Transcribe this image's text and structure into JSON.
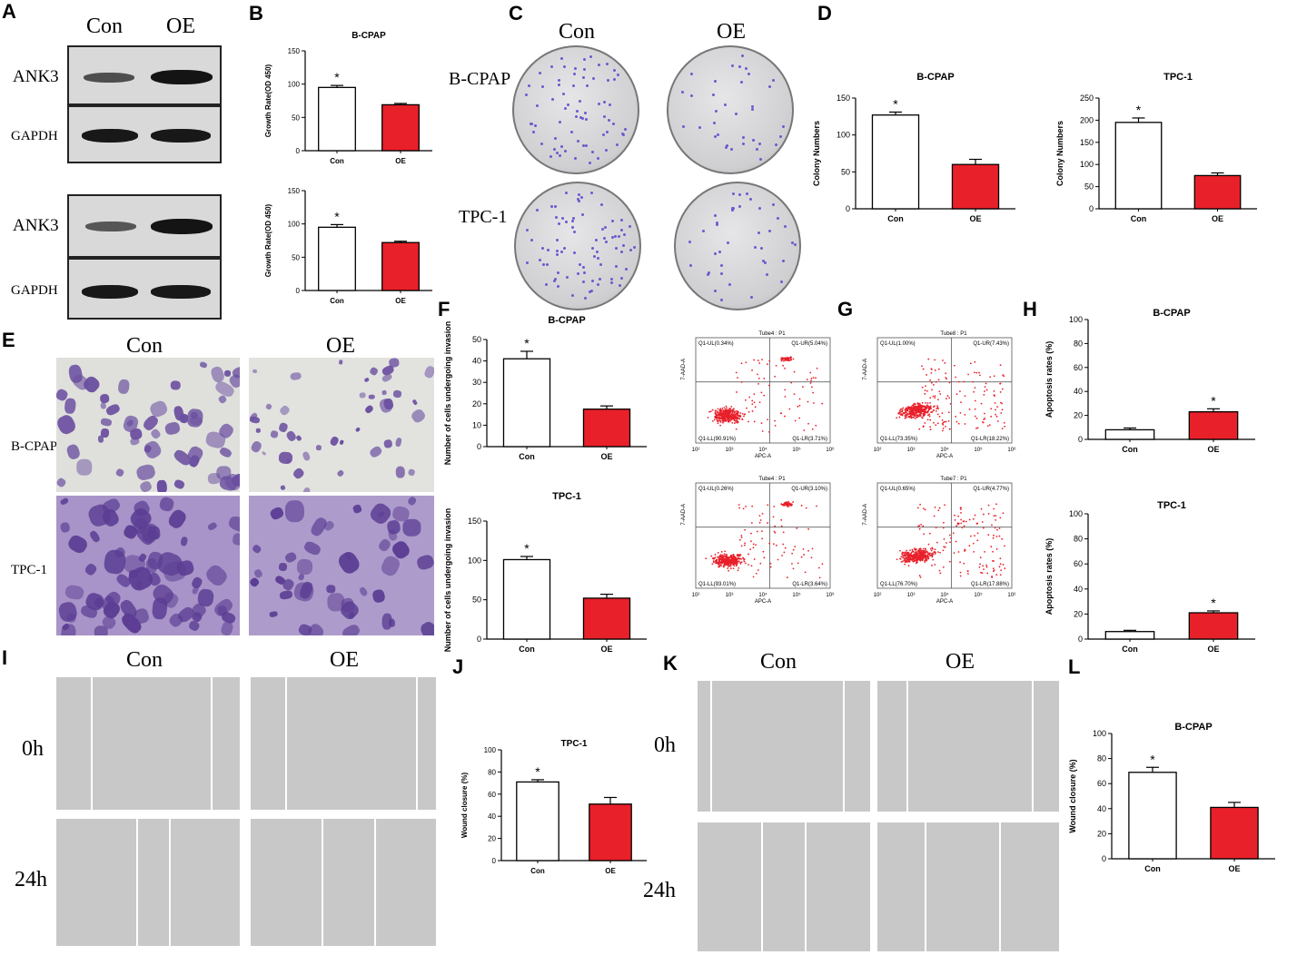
{
  "panels": {
    "A": "A",
    "B": "B",
    "C": "C",
    "D": "D",
    "E": "E",
    "F": "F",
    "G": "G",
    "H": "H",
    "I": "I",
    "J": "J",
    "K": "K",
    "L": "L"
  },
  "labels": {
    "con": "Con",
    "oe": "OE",
    "ank3": "ANK3",
    "gapdh": "GAPDH",
    "bcpap": "B-CPAP",
    "tpc1": "TPC-1",
    "h0": "0h",
    "h24": "24h",
    "star": "*"
  },
  "flow": [
    {
      "tube": "Tube4 : P1",
      "ul": "Q1-UL(0.34%)",
      "ur": "Q1-UR(5.04%)",
      "ll": "Q1-LL(90.91%)",
      "lr": "Q1-LR(3.71%)"
    },
    {
      "tube": "Tube8 : P1",
      "ul": "Q1-UL(1.00%)",
      "ur": "Q1-UR(7.43%)",
      "ll": "Q1-LL(73.35%)",
      "lr": "Q1-LR(18.22%)"
    },
    {
      "tube": "Tube4 : P1",
      "ul": "Q1-UL(0.26%)",
      "ur": "Q1-UR(3.10%)",
      "ll": "Q1-LL(93.01%)",
      "lr": "Q1-LR(3.64%)"
    },
    {
      "tube": "Tube7 : P1",
      "ul": "Q1-UL(0.65%)",
      "ur": "Q1-UR(4.77%)",
      "ll": "Q1-LL(76.70%)",
      "lr": "Q1-LR(17.88%)"
    }
  ],
  "flow_axes": {
    "x": "APC-A",
    "y": "7-AAD-A",
    "xticks": [
      "10²",
      "10³",
      "10⁴",
      "10⁵",
      "10⁶"
    ]
  },
  "colors": {
    "oe_bar": "#e8202a",
    "con_bar": "#ffffff",
    "dot": "#e8202a",
    "stain": "#7a5aa8"
  },
  "chart_data": [
    {
      "id": "B1",
      "type": "bar",
      "title": "B-CPAP",
      "ylabel": "Growth Rate(OD 450)",
      "ylim": [
        0,
        150
      ],
      "yticks": [
        0,
        50,
        100,
        150
      ],
      "categories": [
        "Con",
        "OE"
      ],
      "values": [
        95,
        69
      ],
      "errors": [
        3,
        2
      ],
      "star": 0
    },
    {
      "id": "B2",
      "type": "bar",
      "title": "",
      "ylabel": "Growth Rate(OD 450)",
      "ylim": [
        0,
        150
      ],
      "yticks": [
        0,
        50,
        100,
        150
      ],
      "categories": [
        "Con",
        "OE"
      ],
      "values": [
        95,
        72
      ],
      "errors": [
        4,
        2
      ],
      "star": 0
    },
    {
      "id": "D1",
      "type": "bar",
      "title": "B-CPAP",
      "ylabel": "Colony Numbers",
      "ylim": [
        0,
        150
      ],
      "yticks": [
        0,
        50,
        100,
        150
      ],
      "categories": [
        "Con",
        "OE"
      ],
      "values": [
        127,
        60
      ],
      "errors": [
        4,
        7
      ],
      "star": 0
    },
    {
      "id": "D2",
      "type": "bar",
      "title": "TPC-1",
      "ylabel": "Colony Numbers",
      "ylim": [
        0,
        250
      ],
      "yticks": [
        0,
        50,
        100,
        150,
        200,
        250
      ],
      "categories": [
        "Con",
        "OE"
      ],
      "values": [
        195,
        75
      ],
      "errors": [
        10,
        6
      ],
      "star": 0
    },
    {
      "id": "F1",
      "type": "bar",
      "title": "B-CPAP",
      "ylabel": "Number of cells undergoing invasion",
      "ylim": [
        0,
        50
      ],
      "yticks": [
        0,
        10,
        20,
        30,
        40,
        50
      ],
      "categories": [
        "Con",
        "OE"
      ],
      "values": [
        41,
        17.5
      ],
      "errors": [
        3.5,
        1.5
      ],
      "star": 0
    },
    {
      "id": "F2",
      "type": "bar",
      "title": "TPC-1",
      "ylabel": "Number of cells undergoing invasion",
      "ylim": [
        0,
        150
      ],
      "yticks": [
        0,
        50,
        100,
        150
      ],
      "categories": [
        "Con",
        "OE"
      ],
      "values": [
        101,
        52
      ],
      "errors": [
        4,
        5
      ],
      "star": 0
    },
    {
      "id": "H1",
      "type": "bar",
      "title": "B-CPAP",
      "ylabel": "Apoptosis rates (%)",
      "ylim": [
        0,
        100
      ],
      "yticks": [
        0,
        20,
        40,
        60,
        80,
        100
      ],
      "categories": [
        "Con",
        "OE"
      ],
      "values": [
        8,
        23
      ],
      "errors": [
        1.5,
        2.5
      ],
      "star": 1
    },
    {
      "id": "H2",
      "type": "bar",
      "title": "TPC-1",
      "ylabel": "Apoptosis rates (%)",
      "ylim": [
        0,
        100
      ],
      "yticks": [
        0,
        20,
        40,
        60,
        80,
        100
      ],
      "categories": [
        "Con",
        "OE"
      ],
      "values": [
        6,
        21
      ],
      "errors": [
        1,
        1.5
      ],
      "star": 1
    },
    {
      "id": "J",
      "type": "bar",
      "title": "TPC-1",
      "ylabel": "Wound closure (%)",
      "ylim": [
        0,
        100
      ],
      "yticks": [
        0,
        20,
        40,
        60,
        80,
        100
      ],
      "categories": [
        "Con",
        "OE"
      ],
      "values": [
        71,
        51
      ],
      "errors": [
        2,
        6
      ],
      "star": 0
    },
    {
      "id": "L",
      "type": "bar",
      "title": "B-CPAP",
      "ylabel": "Wound closure (%)",
      "ylim": [
        0,
        100
      ],
      "yticks": [
        0,
        20,
        40,
        60,
        80,
        100
      ],
      "categories": [
        "Con",
        "OE"
      ],
      "values": [
        69,
        41
      ],
      "errors": [
        4,
        4
      ],
      "star": 0
    }
  ]
}
